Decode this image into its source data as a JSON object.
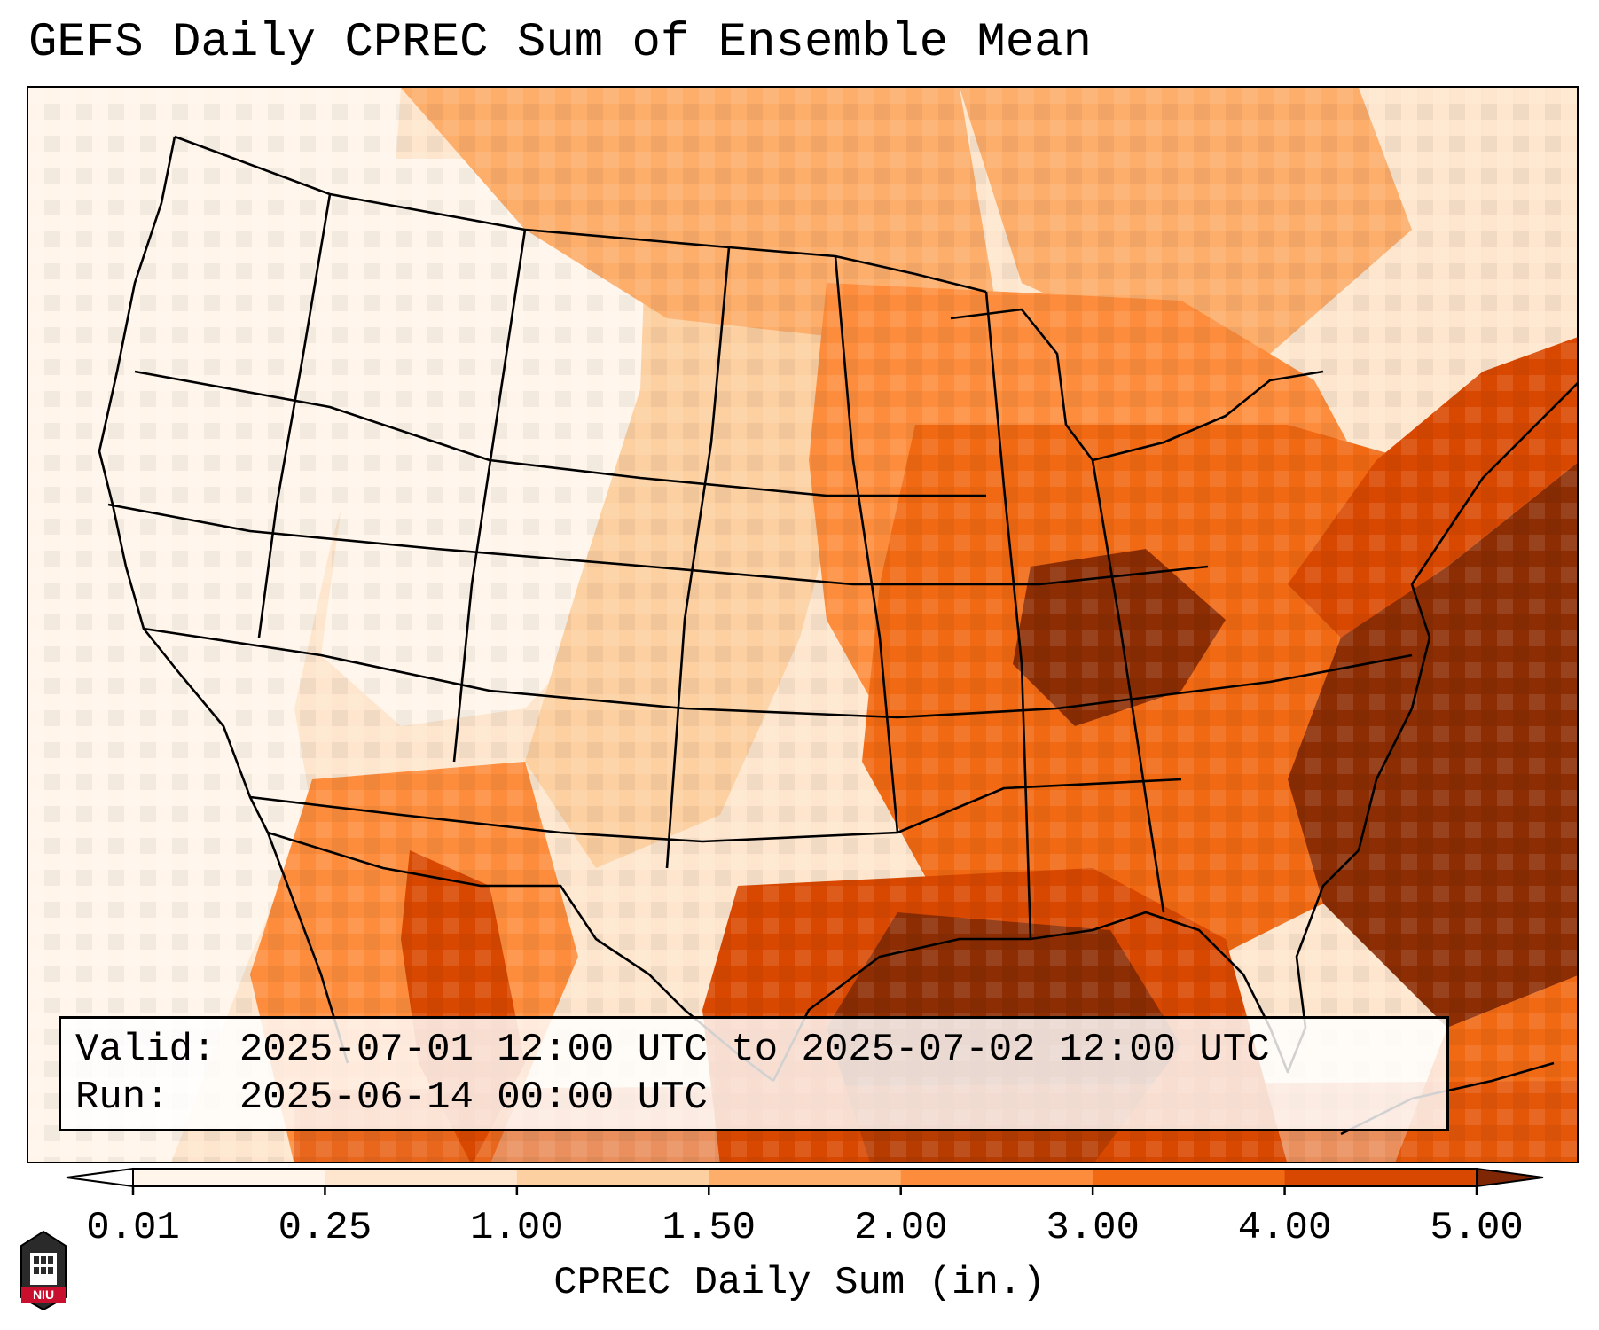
{
  "title": "GEFS Daily CPREC Sum of Ensemble Mean",
  "info": {
    "valid_line": "Valid: 2025-07-01 12:00 UTC to 2025-07-02 12:00 UTC",
    "run_line": "Run:   2025-06-14 00:00 UTC"
  },
  "colorbar": {
    "label": "CPREC Daily Sum (in.)",
    "ticks": [
      "0.01",
      "0.25",
      "1.00",
      "1.50",
      "2.00",
      "3.00",
      "4.00",
      "5.00"
    ],
    "colors": [
      "#fff5eb",
      "#fee6ce",
      "#fdd0a2",
      "#fdae6b",
      "#fd8d3c",
      "#f16913",
      "#d94801",
      "#8c2d04"
    ],
    "extend_low_color": "#ffffff",
    "extend_high_color": "#7f2704"
  },
  "map": {
    "projection": "Lambert Conformal",
    "region": "Continental United States",
    "palette": {
      "none": "#fff5eb",
      "very_light": "#fee6ce",
      "light": "#fdd0a2",
      "medium": "#fdae6b",
      "orange": "#fd8d3c",
      "dark_orange": "#f16913",
      "red_orange": "#d94801",
      "brown": "#8c2d04"
    },
    "logo": "NIU"
  }
}
